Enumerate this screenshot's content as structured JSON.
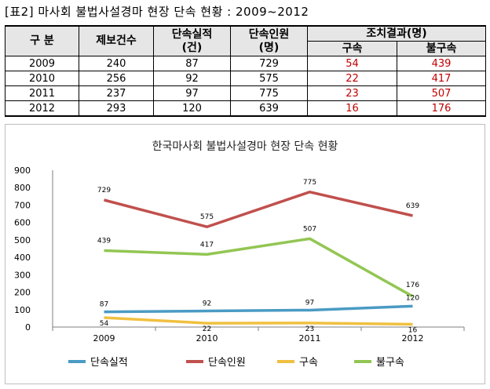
{
  "caption": "[표2] 마사회 불법사설경마 현장 단속 현황 : 2009~2012",
  "table": {
    "header_division": "구  분",
    "header_reports": "제보건수",
    "header_enforcement_line1": "단속실적",
    "header_enforcement_line2": "(건)",
    "header_persons_line1": "단속인원",
    "header_persons_line2": "(명)",
    "header_result": "조치결과(명)",
    "header_arrest": "구속",
    "header_non_arrest": "불구속",
    "rows": [
      {
        "year": "2009",
        "reports": "240",
        "enforcement": "87",
        "persons": "729",
        "arrest": "54",
        "non_arrest": "439"
      },
      {
        "year": "2010",
        "reports": "256",
        "enforcement": "92",
        "persons": "575",
        "arrest": "22",
        "non_arrest": "417"
      },
      {
        "year": "2011",
        "reports": "237",
        "enforcement": "97",
        "persons": "775",
        "arrest": "23",
        "non_arrest": "507"
      },
      {
        "year": "2012",
        "reports": "293",
        "enforcement": "120",
        "persons": "639",
        "arrest": "16",
        "non_arrest": "176"
      }
    ]
  },
  "chart_data": {
    "type": "line",
    "title": "한국마사회 불법사설경마 현장 단속 현황",
    "xlabel": "",
    "ylabel": "",
    "categories": [
      "2009",
      "2010",
      "2011",
      "2012"
    ],
    "ylim": [
      0,
      900
    ],
    "yticks": [
      0,
      100,
      200,
      300,
      400,
      500,
      600,
      700,
      800,
      900
    ],
    "grid": false,
    "legend_position": "bottom",
    "series": [
      {
        "name": "단속실적",
        "color": "#4a9bc4",
        "values": [
          87,
          92,
          97,
          120
        ]
      },
      {
        "name": "단속인원",
        "color": "#c0504d",
        "values": [
          729,
          575,
          775,
          639
        ]
      },
      {
        "name": "구속",
        "color": "#f0c040",
        "values": [
          54,
          22,
          23,
          16
        ]
      },
      {
        "name": "불구속",
        "color": "#92c653",
        "values": [
          439,
          417,
          507,
          176
        ]
      }
    ]
  }
}
